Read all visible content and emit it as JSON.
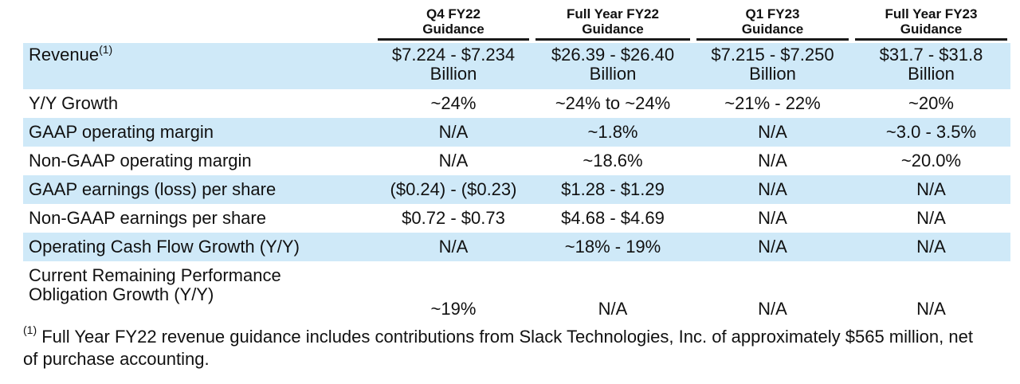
{
  "header": {
    "columns": [
      {
        "line1": "Q4 FY22",
        "line2": "Guidance"
      },
      {
        "line1": "Full Year FY22",
        "line2": "Guidance"
      },
      {
        "line1": "Q1 FY23",
        "line2": "Guidance"
      },
      {
        "line1": "Full Year FY23",
        "line2": "Guidance"
      }
    ]
  },
  "revenue": {
    "label": "Revenue",
    "note": "(1)",
    "values": [
      {
        "range": "$7.224 - $7.234",
        "unit": "Billion"
      },
      {
        "range": "$26.39 - $26.40",
        "unit": "Billion"
      },
      {
        "range": "$7.215 - $7.250",
        "unit": "Billion"
      },
      {
        "range": "$31.7 - $31.8",
        "unit": "Billion"
      }
    ]
  },
  "rows": [
    {
      "label": "Y/Y Growth",
      "values": [
        "~24%",
        "~24% to ~24%",
        "~21% - 22%",
        "~20%"
      ]
    },
    {
      "label": "GAAP operating margin",
      "values": [
        "N/A",
        "~1.8%",
        "N/A",
        "~3.0 - 3.5%"
      ]
    },
    {
      "label": "Non-GAAP operating margin",
      "values": [
        "N/A",
        "~18.6%",
        "N/A",
        "~20.0%"
      ]
    },
    {
      "label": "GAAP earnings (loss) per share",
      "values": [
        "($0.24) - ($0.23)",
        "$1.28 - $1.29",
        "N/A",
        "N/A"
      ]
    },
    {
      "label": "Non-GAAP earnings per share",
      "values": [
        "$0.72 - $0.73",
        "$4.68 - $4.69",
        "N/A",
        "N/A"
      ]
    },
    {
      "label": "Operating Cash Flow Growth (Y/Y)",
      "values": [
        "N/A",
        "~18% - 19%",
        "N/A",
        "N/A"
      ]
    }
  ],
  "crpo": {
    "label_line1": "Current Remaining Performance",
    "label_line2": "Obligation Growth (Y/Y)",
    "values": [
      "~19%",
      "N/A",
      "N/A",
      "N/A"
    ]
  },
  "footnote": {
    "marker": "(1)",
    "text": " Full Year FY22 revenue guidance includes contributions from Slack Technologies, Inc. of approximately $565 million, net of purchase accounting."
  },
  "colors": {
    "row_shade": "#cfe9f8",
    "rule": "#1a1a1a",
    "text": "#111111"
  }
}
